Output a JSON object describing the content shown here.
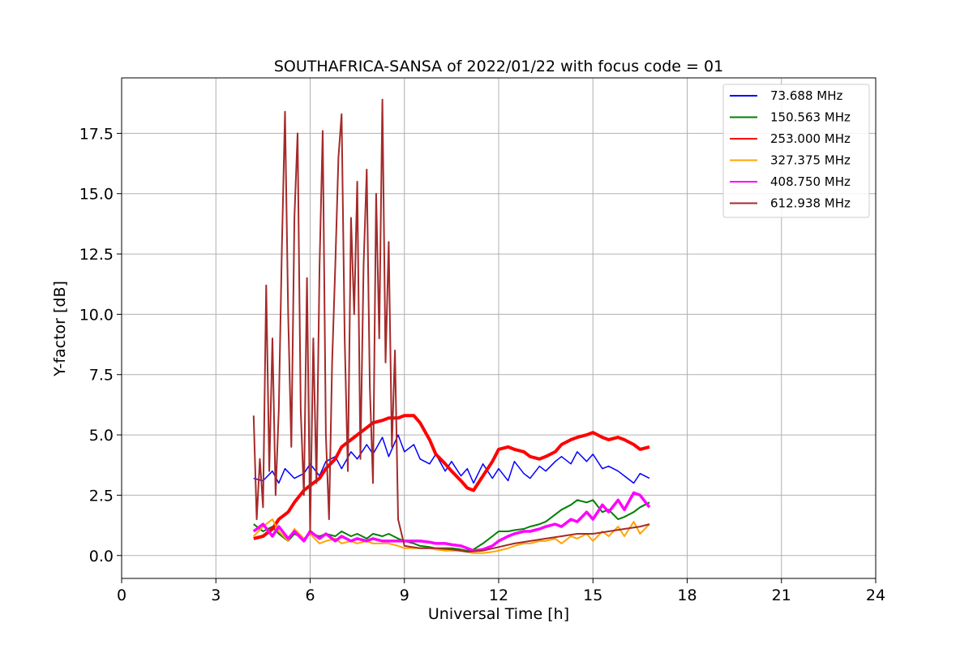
{
  "chart_data": {
    "type": "line",
    "title": "SOUTHAFRICA-SANSA of 2022/01/22 with focus code = 01",
    "xlabel": "Universal Time [h]",
    "ylabel": "Y-factor [dB]",
    "xlim": [
      0,
      24
    ],
    "ylim": [
      -0.95,
      19.8
    ],
    "xticks": [
      0,
      3,
      6,
      9,
      12,
      15,
      18,
      21,
      24
    ],
    "xtick_labels": [
      "0",
      "3",
      "6",
      "9",
      "12",
      "15",
      "18",
      "21",
      "24"
    ],
    "yticks": [
      0.0,
      2.5,
      5.0,
      7.5,
      10.0,
      12.5,
      15.0,
      17.5
    ],
    "ytick_labels": [
      "0.0",
      "2.5",
      "5.0",
      "7.5",
      "10.0",
      "12.5",
      "15.0",
      "17.5"
    ],
    "grid": true,
    "legend_position": "top-right",
    "series": [
      {
        "name": " 73.688 MHz",
        "color": "#0000ff",
        "x": [
          4.2,
          4.5,
          4.8,
          5.0,
          5.2,
          5.5,
          5.8,
          6.0,
          6.3,
          6.5,
          6.8,
          7.0,
          7.3,
          7.5,
          7.8,
          8.0,
          8.3,
          8.5,
          8.8,
          9.0,
          9.3,
          9.5,
          9.8,
          10.0,
          10.3,
          10.5,
          10.8,
          11.0,
          11.2,
          11.5,
          11.8,
          12.0,
          12.3,
          12.5,
          12.8,
          13.0,
          13.3,
          13.5,
          13.8,
          14.0,
          14.3,
          14.5,
          14.8,
          15.0,
          15.3,
          15.5,
          15.8,
          16.0,
          16.3,
          16.5,
          16.8
        ],
        "y": [
          3.2,
          3.1,
          3.5,
          3.0,
          3.6,
          3.2,
          3.4,
          3.8,
          3.3,
          3.9,
          4.1,
          3.6,
          4.3,
          4.0,
          4.6,
          4.2,
          4.9,
          4.1,
          5.0,
          4.3,
          4.6,
          4.0,
          3.8,
          4.2,
          3.5,
          3.9,
          3.3,
          3.6,
          3.0,
          3.8,
          3.2,
          3.6,
          3.1,
          3.9,
          3.4,
          3.2,
          3.7,
          3.5,
          3.9,
          4.1,
          3.8,
          4.3,
          3.9,
          4.2,
          3.6,
          3.7,
          3.5,
          3.3,
          3.0,
          3.4,
          3.2
        ]
      },
      {
        "name": "150.563 MHz",
        "color": "#008000",
        "x": [
          4.2,
          4.5,
          4.8,
          5.0,
          5.3,
          5.5,
          5.8,
          6.0,
          6.3,
          6.5,
          6.8,
          7.0,
          7.3,
          7.5,
          7.8,
          8.0,
          8.3,
          8.5,
          8.8,
          9.0,
          9.3,
          9.5,
          9.8,
          10.0,
          10.3,
          10.5,
          10.8,
          11.0,
          11.2,
          11.5,
          11.8,
          12.0,
          12.3,
          12.5,
          12.8,
          13.0,
          13.3,
          13.5,
          13.8,
          14.0,
          14.3,
          14.5,
          14.8,
          15.0,
          15.3,
          15.5,
          15.8,
          16.0,
          16.3,
          16.5,
          16.8
        ],
        "y": [
          1.3,
          1.0,
          1.2,
          0.9,
          0.6,
          0.9,
          0.7,
          0.9,
          0.8,
          0.9,
          0.8,
          1.0,
          0.8,
          0.9,
          0.7,
          0.9,
          0.8,
          0.9,
          0.7,
          0.6,
          0.5,
          0.4,
          0.35,
          0.3,
          0.3,
          0.3,
          0.25,
          0.2,
          0.25,
          0.5,
          0.8,
          1.0,
          1.0,
          1.05,
          1.1,
          1.2,
          1.3,
          1.4,
          1.7,
          1.9,
          2.1,
          2.3,
          2.2,
          2.3,
          1.8,
          1.9,
          1.5,
          1.6,
          1.8,
          2.0,
          2.2
        ]
      },
      {
        "name": "253.000 MHz",
        "color": "#ff0000",
        "x": [
          4.2,
          4.5,
          4.8,
          5.0,
          5.3,
          5.5,
          5.8,
          6.0,
          6.3,
          6.5,
          6.8,
          7.0,
          7.3,
          7.5,
          7.8,
          8.0,
          8.3,
          8.5,
          8.8,
          9.0,
          9.3,
          9.5,
          9.8,
          10.0,
          10.3,
          10.5,
          10.8,
          11.0,
          11.2,
          11.5,
          11.8,
          12.0,
          12.3,
          12.5,
          12.8,
          13.0,
          13.3,
          13.5,
          13.8,
          14.0,
          14.3,
          14.5,
          14.8,
          15.0,
          15.3,
          15.5,
          15.8,
          16.0,
          16.3,
          16.5,
          16.8
        ],
        "y": [
          0.7,
          0.8,
          1.1,
          1.5,
          1.8,
          2.2,
          2.7,
          2.9,
          3.2,
          3.6,
          4.0,
          4.5,
          4.8,
          5.0,
          5.3,
          5.5,
          5.6,
          5.7,
          5.7,
          5.8,
          5.8,
          5.5,
          4.8,
          4.2,
          3.8,
          3.5,
          3.1,
          2.8,
          2.7,
          3.3,
          3.9,
          4.4,
          4.5,
          4.4,
          4.3,
          4.1,
          4.0,
          4.1,
          4.3,
          4.6,
          4.8,
          4.9,
          5.0,
          5.1,
          4.9,
          4.8,
          4.9,
          4.8,
          4.6,
          4.4,
          4.5
        ]
      },
      {
        "name": "327.375 MHz",
        "color": "#ffa500",
        "x": [
          4.2,
          4.5,
          4.8,
          5.0,
          5.3,
          5.5,
          5.8,
          6.0,
          6.3,
          6.5,
          6.8,
          7.0,
          7.3,
          7.5,
          7.8,
          8.0,
          8.3,
          8.5,
          8.8,
          9.0,
          9.3,
          9.5,
          9.8,
          10.0,
          10.3,
          10.5,
          10.8,
          11.0,
          11.2,
          11.5,
          11.8,
          12.0,
          12.3,
          12.5,
          12.8,
          13.0,
          13.3,
          13.5,
          13.8,
          14.0,
          14.3,
          14.5,
          14.8,
          15.0,
          15.3,
          15.5,
          15.8,
          16.0,
          16.3,
          16.5,
          16.8
        ],
        "y": [
          0.8,
          1.2,
          1.5,
          1.0,
          0.6,
          1.1,
          0.7,
          0.9,
          0.5,
          0.6,
          0.7,
          0.5,
          0.6,
          0.5,
          0.6,
          0.5,
          0.5,
          0.5,
          0.4,
          0.3,
          0.3,
          0.3,
          0.3,
          0.25,
          0.2,
          0.2,
          0.2,
          0.15,
          0.1,
          0.1,
          0.15,
          0.2,
          0.3,
          0.4,
          0.5,
          0.5,
          0.6,
          0.6,
          0.7,
          0.5,
          0.8,
          0.7,
          0.9,
          0.6,
          1.0,
          0.8,
          1.2,
          0.8,
          1.4,
          0.9,
          1.3
        ]
      },
      {
        "name": "408.750 MHz",
        "color": "#ff00ff",
        "x": [
          4.2,
          4.5,
          4.8,
          5.0,
          5.3,
          5.5,
          5.8,
          6.0,
          6.3,
          6.5,
          6.8,
          7.0,
          7.3,
          7.5,
          7.8,
          8.0,
          8.3,
          8.5,
          8.8,
          9.0,
          9.3,
          9.5,
          9.8,
          10.0,
          10.3,
          10.5,
          10.8,
          11.0,
          11.2,
          11.5,
          11.8,
          12.0,
          12.3,
          12.5,
          12.8,
          13.0,
          13.3,
          13.5,
          13.8,
          14.0,
          14.3,
          14.5,
          14.8,
          15.0,
          15.3,
          15.5,
          15.8,
          16.0,
          16.3,
          16.5,
          16.8
        ],
        "y": [
          1.0,
          1.3,
          0.8,
          1.2,
          0.7,
          1.0,
          0.6,
          1.0,
          0.7,
          0.9,
          0.6,
          0.8,
          0.6,
          0.7,
          0.6,
          0.7,
          0.6,
          0.6,
          0.6,
          0.6,
          0.6,
          0.6,
          0.55,
          0.5,
          0.5,
          0.45,
          0.4,
          0.3,
          0.2,
          0.25,
          0.4,
          0.6,
          0.8,
          0.9,
          1.0,
          1.0,
          1.1,
          1.2,
          1.3,
          1.2,
          1.5,
          1.4,
          1.8,
          1.5,
          2.1,
          1.8,
          2.3,
          1.9,
          2.6,
          2.5,
          2.0
        ]
      },
      {
        "name": "612.938 MHz",
        "color": "#a52a2a",
        "x": [
          4.2,
          4.3,
          4.4,
          4.5,
          4.6,
          4.7,
          4.8,
          4.9,
          5.0,
          5.1,
          5.2,
          5.3,
          5.4,
          5.5,
          5.6,
          5.7,
          5.8,
          5.9,
          6.0,
          6.1,
          6.2,
          6.3,
          6.4,
          6.5,
          6.6,
          6.7,
          6.8,
          6.9,
          7.0,
          7.1,
          7.2,
          7.3,
          7.4,
          7.5,
          7.6,
          7.7,
          7.8,
          7.9,
          8.0,
          8.1,
          8.2,
          8.3,
          8.4,
          8.5,
          8.6,
          8.7,
          8.8,
          9.0,
          9.5,
          10.0,
          10.5,
          11.0,
          11.5,
          12.0,
          12.5,
          13.0,
          13.5,
          14.0,
          14.5,
          15.0,
          15.5,
          16.0,
          16.5,
          16.8
        ],
        "y": [
          5.8,
          1.5,
          4.0,
          2.0,
          11.2,
          3.5,
          9.0,
          2.5,
          6.0,
          12.7,
          18.4,
          10.0,
          4.5,
          14.0,
          17.5,
          6.0,
          2.5,
          11.5,
          1.0,
          9.0,
          3.0,
          12.0,
          17.6,
          5.0,
          1.5,
          8.0,
          12.0,
          16.5,
          18.3,
          9.0,
          3.5,
          14.0,
          10.0,
          15.5,
          4.0,
          12.0,
          16.0,
          7.0,
          3.0,
          15.0,
          9.0,
          18.9,
          8.0,
          13.0,
          4.5,
          8.5,
          1.5,
          0.4,
          0.3,
          0.3,
          0.25,
          0.15,
          0.2,
          0.35,
          0.5,
          0.6,
          0.7,
          0.8,
          0.9,
          0.9,
          1.0,
          1.1,
          1.2,
          1.3
        ]
      }
    ]
  }
}
